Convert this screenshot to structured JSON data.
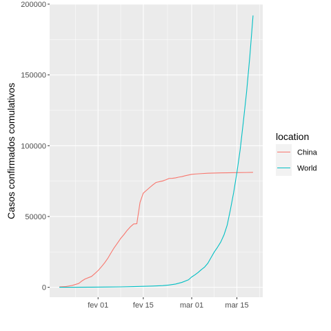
{
  "chart_data": {
    "type": "line",
    "title": "",
    "xlabel": "",
    "ylabel": "Casos confirmados comulativos",
    "xlim": [
      "2020-01-17",
      "2020-03-23"
    ],
    "ylim": [
      -7000,
      200000
    ],
    "x_ticks": [
      {
        "date": "2020-02-01",
        "label": "fev 01"
      },
      {
        "date": "2020-02-15",
        "label": "fev 15"
      },
      {
        "date": "2020-03-01",
        "label": "mar 01"
      },
      {
        "date": "2020-03-15",
        "label": "mar 15"
      }
    ],
    "y_ticks": [
      {
        "value": 0,
        "label": "0"
      },
      {
        "value": 50000,
        "label": "50000"
      },
      {
        "value": 100000,
        "label": "100000"
      },
      {
        "value": 150000,
        "label": "150000"
      },
      {
        "value": 200000,
        "label": "200000"
      }
    ],
    "grid": true,
    "legend": {
      "title": "location",
      "position": "right"
    },
    "series": [
      {
        "name": "China",
        "color": "#F8766D",
        "points": [
          [
            "2020-01-20",
            300
          ],
          [
            "2020-01-22",
            550
          ],
          [
            "2020-01-24",
            1300
          ],
          [
            "2020-01-26",
            2700
          ],
          [
            "2020-01-27",
            4500
          ],
          [
            "2020-01-28",
            5900
          ],
          [
            "2020-01-30",
            7700
          ],
          [
            "2020-01-31",
            9700
          ],
          [
            "2020-02-01",
            11800
          ],
          [
            "2020-02-02",
            14400
          ],
          [
            "2020-02-03",
            17200
          ],
          [
            "2020-02-04",
            20400
          ],
          [
            "2020-02-05",
            24300
          ],
          [
            "2020-02-06",
            28000
          ],
          [
            "2020-02-07",
            31200
          ],
          [
            "2020-02-08",
            34500
          ],
          [
            "2020-02-09",
            37200
          ],
          [
            "2020-02-10",
            40200
          ],
          [
            "2020-02-11",
            42700
          ],
          [
            "2020-02-12",
            44700
          ],
          [
            "2020-02-13",
            44900
          ],
          [
            "2020-02-14",
            60000
          ],
          [
            "2020-02-15",
            66500
          ],
          [
            "2020-02-16",
            68500
          ],
          [
            "2020-02-17",
            70500
          ],
          [
            "2020-02-18",
            72400
          ],
          [
            "2020-02-19",
            74100
          ],
          [
            "2020-02-20",
            74600
          ],
          [
            "2020-02-21",
            75100
          ],
          [
            "2020-02-22",
            75900
          ],
          [
            "2020-02-23",
            76900
          ],
          [
            "2020-02-24",
            77000
          ],
          [
            "2020-02-25",
            77300
          ],
          [
            "2020-02-26",
            77800
          ],
          [
            "2020-02-27",
            78200
          ],
          [
            "2020-02-28",
            78800
          ],
          [
            "2020-02-29",
            79300
          ],
          [
            "2020-03-01",
            79800
          ],
          [
            "2020-03-02",
            80000
          ],
          [
            "2020-03-04",
            80300
          ],
          [
            "2020-03-06",
            80600
          ],
          [
            "2020-03-08",
            80700
          ],
          [
            "2020-03-10",
            80800
          ],
          [
            "2020-03-12",
            80900
          ],
          [
            "2020-03-15",
            81000
          ],
          [
            "2020-03-18",
            81100
          ],
          [
            "2020-03-20",
            81200
          ]
        ]
      },
      {
        "name": "World",
        "color": "#00BFC4",
        "points": [
          [
            "2020-01-20",
            10
          ],
          [
            "2020-01-25",
            50
          ],
          [
            "2020-01-30",
            100
          ],
          [
            "2020-02-04",
            200
          ],
          [
            "2020-02-08",
            300
          ],
          [
            "2020-02-12",
            500
          ],
          [
            "2020-02-15",
            700
          ],
          [
            "2020-02-18",
            900
          ],
          [
            "2020-02-21",
            1200
          ],
          [
            "2020-02-23",
            1600
          ],
          [
            "2020-02-25",
            2300
          ],
          [
            "2020-02-27",
            3500
          ],
          [
            "2020-02-29",
            5300
          ],
          [
            "2020-03-01",
            7300
          ],
          [
            "2020-03-02",
            8800
          ],
          [
            "2020-03-03",
            10500
          ],
          [
            "2020-03-04",
            12500
          ],
          [
            "2020-03-05",
            14300
          ],
          [
            "2020-03-06",
            17000
          ],
          [
            "2020-03-07",
            21000
          ],
          [
            "2020-03-08",
            25000
          ],
          [
            "2020-03-09",
            28300
          ],
          [
            "2020-03-10",
            32000
          ],
          [
            "2020-03-11",
            37000
          ],
          [
            "2020-03-12",
            44000
          ],
          [
            "2020-03-13",
            55000
          ],
          [
            "2020-03-14",
            67000
          ],
          [
            "2020-03-15",
            81000
          ],
          [
            "2020-03-16",
            97000
          ],
          [
            "2020-03-17",
            117000
          ],
          [
            "2020-03-18",
            138000
          ],
          [
            "2020-03-19",
            163000
          ],
          [
            "2020-03-20",
            192000
          ]
        ]
      }
    ]
  }
}
